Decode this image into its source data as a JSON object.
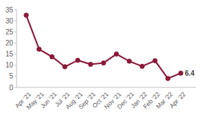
{
  "chart_data": {
    "type": "line",
    "categories": [
      "Apr '21",
      "May '21",
      "Jun '21",
      "Jul '21",
      "Aug '21",
      "Sep '21",
      "Oct '21",
      "Nov '21",
      "Dec '21",
      "Jan '22",
      "Feb '22",
      "Mar '22",
      "Apr '22"
    ],
    "values": [
      32.5,
      17.2,
      13.8,
      9.3,
      12.2,
      10.4,
      11,
      15,
      11.8,
      9.5,
      12,
      4,
      6.4
    ],
    "value_labels": [
      null,
      null,
      null,
      null,
      null,
      null,
      null,
      null,
      null,
      null,
      null,
      null,
      "6.4"
    ],
    "color": "#8b1a3a",
    "marker": "circle",
    "ylim": [
      0,
      35
    ],
    "yticks": [
      0,
      5,
      10,
      15,
      20,
      25,
      30,
      35
    ],
    "grid": false
  }
}
